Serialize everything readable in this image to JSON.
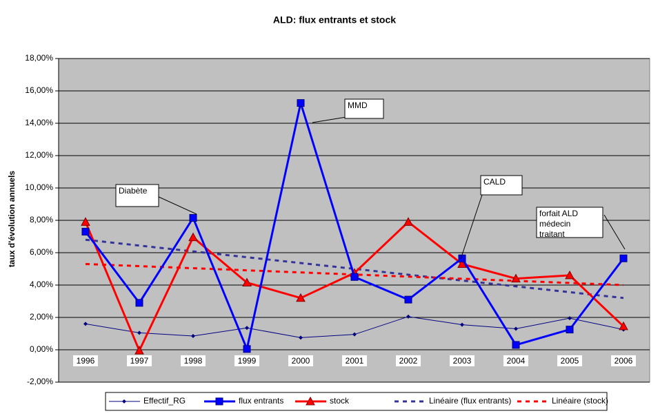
{
  "chart_data": {
    "type": "line",
    "title": "ALD: flux entrants et stock",
    "y_label": "taux d'évolution annuels",
    "categories": [
      "1996",
      "1997",
      "1998",
      "1999",
      "2000",
      "2001",
      "2002",
      "2003",
      "2004",
      "2005",
      "2006"
    ],
    "ylim": [
      -2,
      18
    ],
    "yticks": [
      {
        "value": -2,
        "label": "-2,00%"
      },
      {
        "value": 0,
        "label": "0,00%"
      },
      {
        "value": 2,
        "label": "2,00%"
      },
      {
        "value": 4,
        "label": "4,00%"
      },
      {
        "value": 6,
        "label": "6,00%"
      },
      {
        "value": 8,
        "label": "8,00%"
      },
      {
        "value": 10,
        "label": "10,00%"
      },
      {
        "value": 12,
        "label": "12,00%"
      },
      {
        "value": 14,
        "label": "14,00%"
      },
      {
        "value": 16,
        "label": "16,00%"
      },
      {
        "value": 18,
        "label": "18,00%"
      }
    ],
    "grid": true,
    "series": [
      {
        "name": "Effectif_RG",
        "color": "#000080",
        "marker": "diamond",
        "style": "thin",
        "values": [
          1.6,
          1.05,
          0.85,
          1.35,
          0.75,
          0.95,
          2.05,
          1.55,
          1.3,
          1.95,
          1.25
        ]
      },
      {
        "name": "flux entrants",
        "color": "#0000ff",
        "marker": "square",
        "style": "thick",
        "values": [
          7.3,
          2.9,
          8.15,
          0.05,
          15.25,
          4.5,
          3.1,
          5.65,
          0.3,
          1.25,
          5.65
        ]
      },
      {
        "name": "stock",
        "color": "#ff0000",
        "marker": "triangle",
        "style": "thick",
        "values": [
          7.9,
          -0.05,
          6.95,
          4.15,
          3.2,
          4.75,
          7.9,
          5.3,
          4.4,
          4.6,
          1.45
        ]
      },
      {
        "name": "Linéaire (flux entrants)",
        "color": "#333399",
        "marker": "none",
        "style": "dashed",
        "values": [
          6.8,
          6.44,
          6.08,
          5.72,
          5.36,
          5.0,
          4.64,
          4.28,
          3.92,
          3.56,
          3.2
        ]
      },
      {
        "name": "Linéaire (stock)",
        "color": "#ff0000",
        "marker": "none",
        "style": "dashed",
        "values": [
          5.3,
          5.17,
          5.04,
          4.91,
          4.78,
          4.65,
          4.52,
          4.39,
          4.26,
          4.13,
          4.0
        ]
      }
    ],
    "annotations": [
      {
        "lines": [
          "MMD"
        ]
      },
      {
        "lines": [
          "Diabète"
        ]
      },
      {
        "lines": [
          "CALD"
        ]
      },
      {
        "lines": [
          "forfait ALD",
          "médecin",
          "traitant"
        ]
      }
    ]
  }
}
